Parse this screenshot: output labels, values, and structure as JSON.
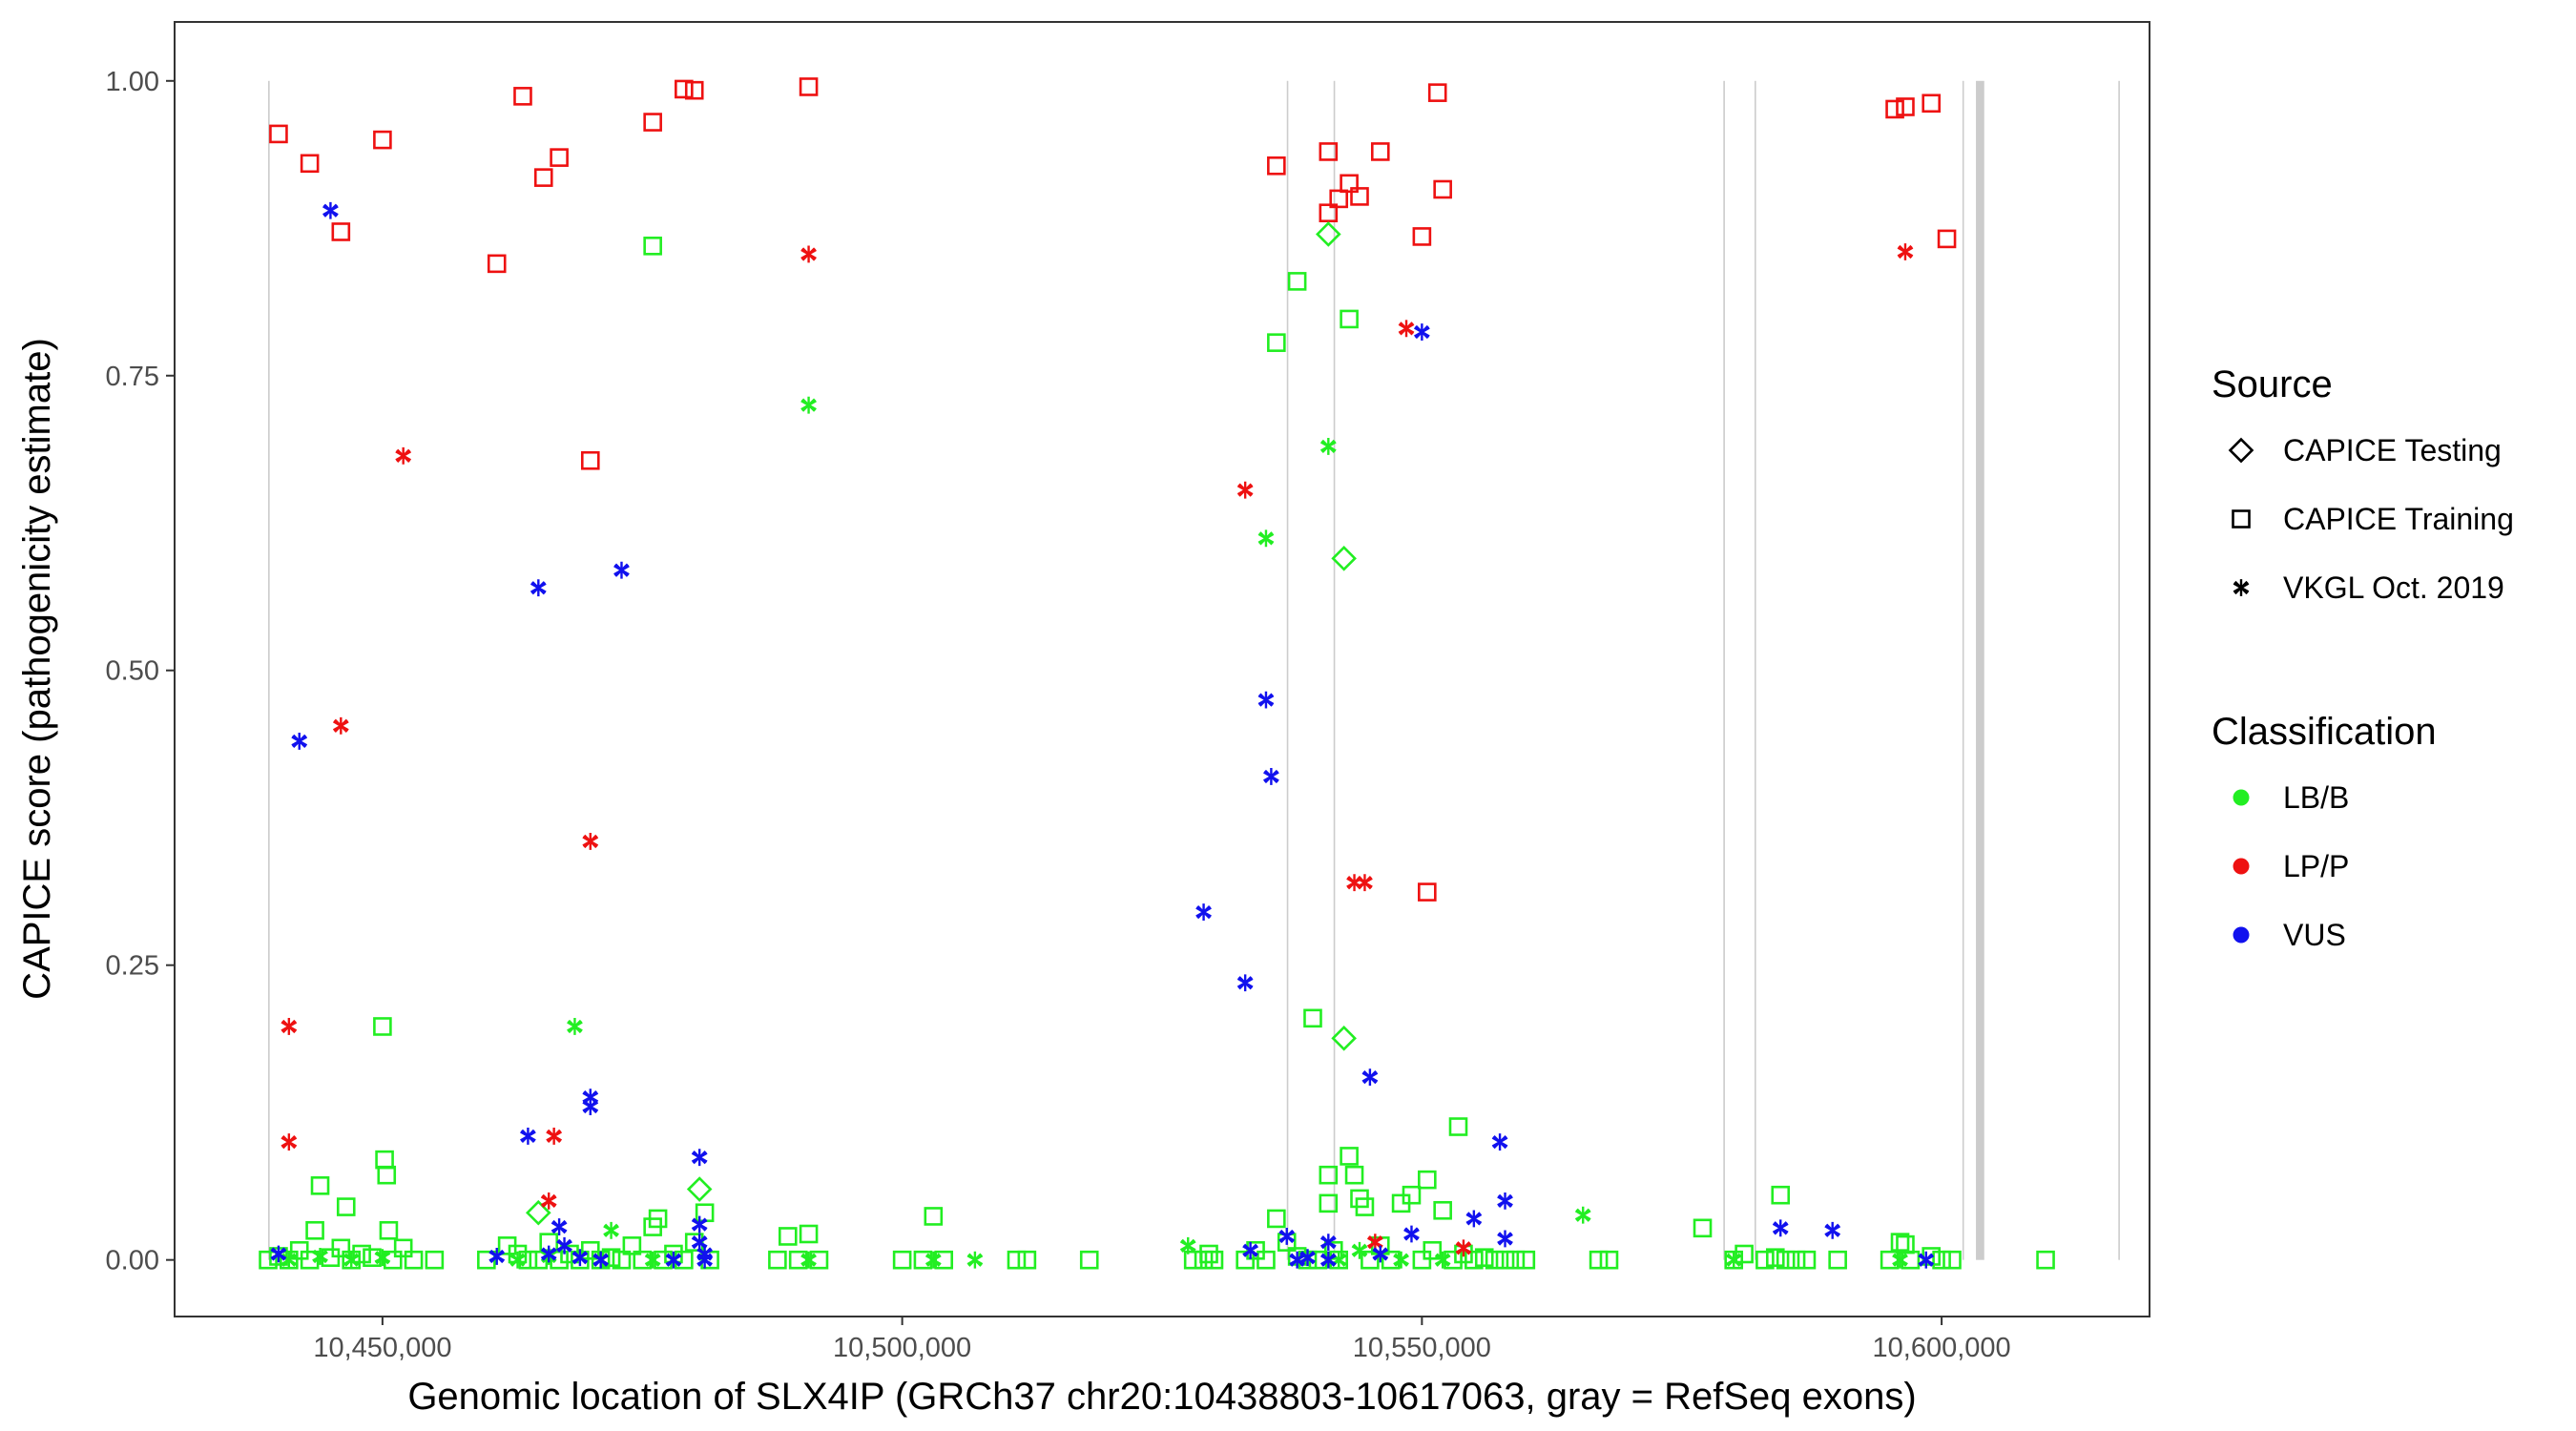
{
  "chart_data": {
    "type": "scatter",
    "xlabel": "Genomic location of SLX4IP (GRCh37 chr20:10438803-10617063, gray = RefSeq exons)",
    "ylabel": "CAPICE score (pathogenicity estimate)",
    "xlim": [
      10430000,
      10620000
    ],
    "ylim": [
      -0.048,
      1.05
    ],
    "x_ticks": [
      10450000,
      10500000,
      10550000,
      10600000
    ],
    "x_tick_labels": [
      "10,450,000",
      "10,500,000",
      "10,550,000",
      "10,600,000"
    ],
    "y_ticks": [
      0,
      0.25,
      0.5,
      0.75,
      1.0
    ],
    "y_tick_labels": [
      "0.00",
      "0.25",
      "0.50",
      "0.75",
      "1.00"
    ],
    "exons": [
      {
        "start": 10439000,
        "end": 10439100
      },
      {
        "start": 10537000,
        "end": 10537100
      },
      {
        "start": 10541500,
        "end": 10541600
      },
      {
        "start": 10579000,
        "end": 10579100
      },
      {
        "start": 10582000,
        "end": 10582100
      },
      {
        "start": 10602000,
        "end": 10602100
      },
      {
        "start": 10603300,
        "end": 10604100
      },
      {
        "start": 10617000,
        "end": 10617063
      }
    ],
    "legend": {
      "source": {
        "title": "Source",
        "items": [
          {
            "label": "CAPICE Testing",
            "shape": "diamond"
          },
          {
            "label": "CAPICE Training",
            "shape": "square"
          },
          {
            "label": "VKGL Oct. 2019",
            "shape": "star"
          }
        ]
      },
      "classification": {
        "title": "Classification",
        "items": [
          {
            "label": "LB/B",
            "color": "#22ee22"
          },
          {
            "label": "LP/P",
            "color": "#ee1111"
          },
          {
            "label": "VUS",
            "color": "#1111ee"
          }
        ]
      }
    },
    "series": [
      {
        "source": "CAPICE Training",
        "classification": "LP/P",
        "shape": "square",
        "color": "#ee1111",
        "points": [
          [
            10440000,
            0.955
          ],
          [
            10443000,
            0.93
          ],
          [
            10446000,
            0.872
          ],
          [
            10450000,
            0.95
          ],
          [
            10461000,
            0.845
          ],
          [
            10463500,
            0.987
          ],
          [
            10465500,
            0.918
          ],
          [
            10467000,
            0.935
          ],
          [
            10470000,
            0.678
          ],
          [
            10476000,
            0.965
          ],
          [
            10479000,
            0.993
          ],
          [
            10480000,
            0.992
          ],
          [
            10491000,
            0.995
          ],
          [
            10536000,
            0.928
          ],
          [
            10541000,
            0.94
          ],
          [
            10541000,
            0.888
          ],
          [
            10542000,
            0.9
          ],
          [
            10543000,
            0.913
          ],
          [
            10544000,
            0.902
          ],
          [
            10546000,
            0.94
          ],
          [
            10550000,
            0.868
          ],
          [
            10550500,
            0.312
          ],
          [
            10551500,
            0.99
          ],
          [
            10552000,
            0.908
          ],
          [
            10595500,
            0.976
          ],
          [
            10596500,
            0.978
          ],
          [
            10599000,
            0.981
          ],
          [
            10600500,
            0.866
          ]
        ]
      },
      {
        "source": "CAPICE Training",
        "classification": "LB/B",
        "shape": "square",
        "color": "#22ee22",
        "points": [
          [
            10439000,
            0.0
          ],
          [
            10440000,
            0.003
          ],
          [
            10441000,
            0.0
          ],
          [
            10442000,
            0.008
          ],
          [
            10443000,
            0.0
          ],
          [
            10443500,
            0.025
          ],
          [
            10444000,
            0.063
          ],
          [
            10445000,
            0.002
          ],
          [
            10446000,
            0.01
          ],
          [
            10446500,
            0.045
          ],
          [
            10447000,
            0.0
          ],
          [
            10448000,
            0.005
          ],
          [
            10449000,
            0.002
          ],
          [
            10450000,
            0.198
          ],
          [
            10450200,
            0.085
          ],
          [
            10450400,
            0.072
          ],
          [
            10450600,
            0.025
          ],
          [
            10451000,
            0.0
          ],
          [
            10452000,
            0.01
          ],
          [
            10453000,
            0.0
          ],
          [
            10455000,
            0.0
          ],
          [
            10460000,
            0.0
          ],
          [
            10462000,
            0.012
          ],
          [
            10463000,
            0.005
          ],
          [
            10464000,
            0.0
          ],
          [
            10465000,
            0.0
          ],
          [
            10466000,
            0.015
          ],
          [
            10467000,
            0.0
          ],
          [
            10468000,
            0.005
          ],
          [
            10469000,
            0.0
          ],
          [
            10470000,
            0.008
          ],
          [
            10471000,
            0.0
          ],
          [
            10472000,
            0.002
          ],
          [
            10473000,
            0.0
          ],
          [
            10474000,
            0.012
          ],
          [
            10475000,
            0.0
          ],
          [
            10476000,
            0.028
          ],
          [
            10476500,
            0.035
          ],
          [
            10476000,
            0.86
          ],
          [
            10477000,
            0.0
          ],
          [
            10478000,
            0.005
          ],
          [
            10479000,
            0.0
          ],
          [
            10480000,
            0.015
          ],
          [
            10481000,
            0.04
          ],
          [
            10481500,
            0.0
          ],
          [
            10488000,
            0.0
          ],
          [
            10489000,
            0.02
          ],
          [
            10490000,
            0.0
          ],
          [
            10491000,
            0.022
          ],
          [
            10492000,
            0.0
          ],
          [
            10500000,
            0.0
          ],
          [
            10502000,
            0.0
          ],
          [
            10503000,
            0.037
          ],
          [
            10504000,
            0.0
          ],
          [
            10511000,
            0.0
          ],
          [
            10512000,
            0.0
          ],
          [
            10518000,
            0.0
          ],
          [
            10528000,
            0.0
          ],
          [
            10529000,
            0.0
          ],
          [
            10529500,
            0.005
          ],
          [
            10530000,
            0.0
          ],
          [
            10533000,
            0.0
          ],
          [
            10534000,
            0.008
          ],
          [
            10535000,
            0.0
          ],
          [
            10536000,
            0.035
          ],
          [
            10536000,
            0.778
          ],
          [
            10537000,
            0.015
          ],
          [
            10538000,
            0.83
          ],
          [
            10538000,
            0.003
          ],
          [
            10539000,
            0.0
          ],
          [
            10539500,
            0.205
          ],
          [
            10540000,
            0.0
          ],
          [
            10541000,
            0.072
          ],
          [
            10541000,
            0.048
          ],
          [
            10541500,
            0.008
          ],
          [
            10542000,
            0.0
          ],
          [
            10543000,
            0.798
          ],
          [
            10543000,
            0.088
          ],
          [
            10543500,
            0.072
          ],
          [
            10544000,
            0.052
          ],
          [
            10544500,
            0.045
          ],
          [
            10545000,
            0.0
          ],
          [
            10546000,
            0.012
          ],
          [
            10547000,
            0.0
          ],
          [
            10548000,
            0.048
          ],
          [
            10549000,
            0.055
          ],
          [
            10550000,
            0.0
          ],
          [
            10550500,
            0.068
          ],
          [
            10551000,
            0.008
          ],
          [
            10552000,
            0.042
          ],
          [
            10553000,
            0.0
          ],
          [
            10553500,
            0.113
          ],
          [
            10554000,
            0.005
          ],
          [
            10555000,
            0.0
          ],
          [
            10556000,
            0.002
          ],
          [
            10557000,
            0.0
          ],
          [
            10558000,
            0.0
          ],
          [
            10559000,
            0.0
          ],
          [
            10560000,
            0.0
          ],
          [
            10567000,
            0.0
          ],
          [
            10568000,
            0.0
          ],
          [
            10577000,
            0.027
          ],
          [
            10580000,
            0.0
          ],
          [
            10581000,
            0.005
          ],
          [
            10583000,
            0.0
          ],
          [
            10584000,
            0.002
          ],
          [
            10584500,
            0.055
          ],
          [
            10585000,
            0.0
          ],
          [
            10586000,
            0.0
          ],
          [
            10587000,
            0.0
          ],
          [
            10590000,
            0.0
          ],
          [
            10595000,
            0.0
          ],
          [
            10596000,
            0.015
          ],
          [
            10596500,
            0.013
          ],
          [
            10597000,
            0.0
          ],
          [
            10599000,
            0.003
          ],
          [
            10600000,
            0.0
          ],
          [
            10601000,
            0.0
          ],
          [
            10610000,
            0.0
          ]
        ]
      },
      {
        "source": "CAPICE Testing",
        "classification": "LB/B",
        "shape": "diamond",
        "color": "#22ee22",
        "points": [
          [
            10465000,
            0.04
          ],
          [
            10480500,
            0.06
          ],
          [
            10541000,
            0.87
          ],
          [
            10542500,
            0.595
          ],
          [
            10542500,
            0.188
          ]
        ]
      },
      {
        "source": "VKGL Oct. 2019",
        "classification": "LP/P",
        "shape": "star",
        "color": "#ee1111",
        "points": [
          [
            10441000,
            0.198
          ],
          [
            10441000,
            0.1
          ],
          [
            10446000,
            0.453
          ],
          [
            10452000,
            0.682
          ],
          [
            10466000,
            0.05
          ],
          [
            10466500,
            0.105
          ],
          [
            10470000,
            0.355
          ],
          [
            10491000,
            0.853
          ],
          [
            10533000,
            0.653
          ],
          [
            10543500,
            0.32
          ],
          [
            10544500,
            0.32
          ],
          [
            10545500,
            0.015
          ],
          [
            10548500,
            0.79
          ],
          [
            10554000,
            0.01
          ],
          [
            10596500,
            0.855
          ]
        ]
      },
      {
        "source": "VKGL Oct. 2019",
        "classification": "LB/B",
        "shape": "star",
        "color": "#22ee22",
        "points": [
          [
            10441000,
            0.0
          ],
          [
            10444000,
            0.003
          ],
          [
            10447000,
            0.0
          ],
          [
            10450000,
            0.002
          ],
          [
            10463000,
            0.0
          ],
          [
            10466000,
            0.003
          ],
          [
            10468500,
            0.198
          ],
          [
            10471000,
            0.0
          ],
          [
            10472000,
            0.025
          ],
          [
            10476000,
            0.0
          ],
          [
            10491000,
            0.725
          ],
          [
            10491000,
            0.0
          ],
          [
            10503000,
            0.0
          ],
          [
            10507000,
            0.0
          ],
          [
            10527500,
            0.012
          ],
          [
            10535000,
            0.612
          ],
          [
            10541000,
            0.69
          ],
          [
            10542000,
            0.0
          ],
          [
            10544000,
            0.008
          ],
          [
            10548000,
            0.0
          ],
          [
            10552000,
            0.0
          ],
          [
            10565500,
            0.038
          ],
          [
            10580000,
            0.0
          ],
          [
            10596000,
            0.0
          ]
        ]
      },
      {
        "source": "VKGL Oct. 2019",
        "classification": "VUS",
        "shape": "star",
        "color": "#1111ee",
        "points": [
          [
            10440000,
            0.005
          ],
          [
            10442000,
            0.44
          ],
          [
            10445000,
            0.89
          ],
          [
            10461000,
            0.003
          ],
          [
            10464000,
            0.105
          ],
          [
            10465000,
            0.57
          ],
          [
            10466000,
            0.005
          ],
          [
            10467000,
            0.028
          ],
          [
            10467500,
            0.012
          ],
          [
            10469000,
            0.002
          ],
          [
            10470000,
            0.138
          ],
          [
            10470000,
            0.13
          ],
          [
            10471000,
            0.0
          ],
          [
            10473000,
            0.585
          ],
          [
            10478000,
            0.0
          ],
          [
            10480500,
            0.087
          ],
          [
            10480500,
            0.03
          ],
          [
            10480500,
            0.015
          ],
          [
            10481000,
            0.0
          ],
          [
            10481000,
            0.005
          ],
          [
            10529000,
            0.295
          ],
          [
            10533000,
            0.235
          ],
          [
            10533500,
            0.008
          ],
          [
            10535000,
            0.475
          ],
          [
            10535500,
            0.41
          ],
          [
            10537000,
            0.02
          ],
          [
            10538000,
            0.0
          ],
          [
            10539000,
            0.002
          ],
          [
            10541000,
            0.015
          ],
          [
            10541000,
            0.0
          ],
          [
            10545000,
            0.155
          ],
          [
            10546000,
            0.005
          ],
          [
            10549000,
            0.022
          ],
          [
            10550000,
            0.787
          ],
          [
            10555000,
            0.035
          ],
          [
            10557500,
            0.1
          ],
          [
            10558000,
            0.05
          ],
          [
            10558000,
            0.018
          ],
          [
            10584500,
            0.027
          ],
          [
            10589500,
            0.025
          ],
          [
            10598500,
            0.0
          ]
        ]
      }
    ]
  }
}
